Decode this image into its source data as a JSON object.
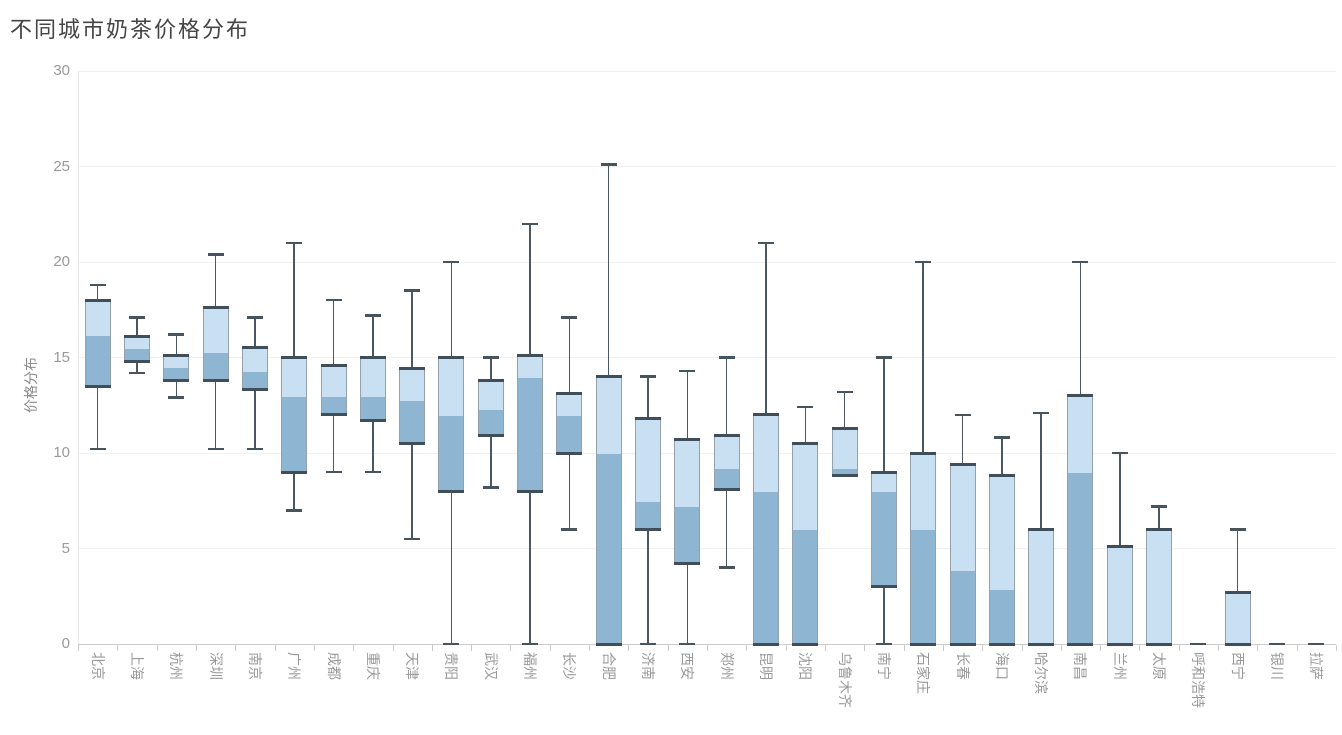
{
  "chart_data": {
    "type": "boxplot",
    "title": "不同城市奶茶价格分布",
    "ylabel": "价格分布",
    "xlabel": "",
    "ylim": [
      0,
      30
    ],
    "y_ticks": [
      0,
      5,
      10,
      15,
      20,
      25,
      30
    ],
    "grid": true,
    "legend_position": "none",
    "stats_order": [
      "min",
      "q1",
      "median",
      "q3",
      "max"
    ],
    "categories": [
      "北京",
      "上海",
      "杭州",
      "深圳",
      "南京",
      "广州",
      "成都",
      "重庆",
      "天津",
      "贵阳",
      "武汉",
      "福州",
      "长沙",
      "合肥",
      "济南",
      "西安",
      "郑州",
      "昆明",
      "沈阳",
      "乌鲁木齐",
      "南宁",
      "石家庄",
      "长春",
      "海口",
      "哈尔滨",
      "南昌",
      "兰州",
      "太原",
      "呼和浩特",
      "西宁",
      "银川",
      "拉萨"
    ],
    "series": [
      {
        "name": "价格分布",
        "stats": [
          [
            10.2,
            13.5,
            16.2,
            18.0,
            18.8
          ],
          [
            14.2,
            14.8,
            15.5,
            16.1,
            17.1
          ],
          [
            12.9,
            13.8,
            14.5,
            15.1,
            16.2
          ],
          [
            10.2,
            13.8,
            15.3,
            17.6,
            20.4
          ],
          [
            10.2,
            13.3,
            14.3,
            15.5,
            17.1
          ],
          [
            7.0,
            9.0,
            13.0,
            15.0,
            21.0
          ],
          [
            9.0,
            12.0,
            13.0,
            14.6,
            18.0
          ],
          [
            9.0,
            11.7,
            13.0,
            15.0,
            17.2
          ],
          [
            5.5,
            10.5,
            12.8,
            14.4,
            18.5
          ],
          [
            0,
            8.0,
            12.0,
            15.0,
            20.0
          ],
          [
            8.2,
            10.9,
            12.3,
            13.8,
            15.0
          ],
          [
            0,
            8.0,
            14.0,
            15.1,
            22.0
          ],
          [
            6.0,
            10.0,
            12.0,
            13.1,
            17.1
          ],
          [
            0,
            0,
            10.0,
            14.0,
            25.1
          ],
          [
            0,
            6.0,
            7.5,
            11.8,
            14.0
          ],
          [
            0,
            4.2,
            7.2,
            10.7,
            14.3
          ],
          [
            4.0,
            8.1,
            9.2,
            10.9,
            15.0
          ],
          [
            0,
            0,
            8.0,
            12.0,
            21.0
          ],
          [
            0,
            0,
            6.0,
            10.5,
            12.4
          ],
          [
            8.8,
            8.8,
            9.2,
            11.3,
            13.2
          ],
          [
            0,
            3.0,
            8.0,
            9.0,
            15.0
          ],
          [
            0,
            0,
            6.0,
            10.0,
            20.0
          ],
          [
            0,
            0,
            3.9,
            9.4,
            12.0
          ],
          [
            0,
            0,
            2.9,
            8.8,
            10.8
          ],
          [
            0,
            0,
            0,
            6.0,
            12.1
          ],
          [
            0,
            0,
            9.0,
            13.0,
            20.0
          ],
          [
            0,
            0,
            0,
            5.1,
            10.0
          ],
          [
            0,
            0,
            0,
            6.0,
            7.2
          ],
          [
            0,
            0,
            0,
            0,
            0
          ],
          [
            0,
            0,
            0,
            2.7,
            6.0
          ],
          [
            0,
            0,
            0,
            0,
            0
          ],
          [
            0,
            0,
            0,
            0,
            0
          ]
        ]
      }
    ],
    "colors": {
      "box_upper_fill": "#c9e0f2",
      "box_lower_fill": "#8eb5d2",
      "box_edge": "#3f4e59",
      "whisker": "#4a5863",
      "axis_label": "#999999",
      "title_color": "#454545",
      "gridline": "#f0f0f0",
      "axis_line": "#cccccc"
    }
  }
}
